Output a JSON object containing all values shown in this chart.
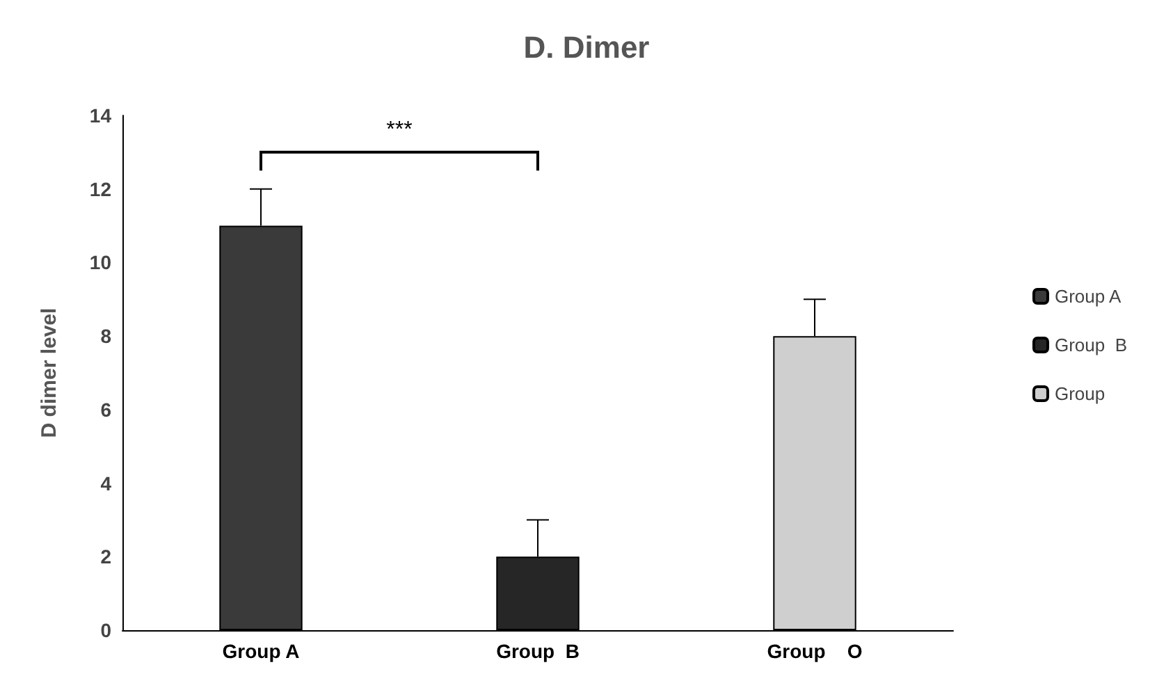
{
  "chart_data": {
    "type": "bar",
    "title": "D. Dimer",
    "ylabel": "D dimer level",
    "categories": [
      "Group A",
      "Group  B",
      "Group    O"
    ],
    "series": [
      {
        "name": "Group A",
        "color": "#3a3a3a",
        "values": [
          11,
          null,
          null
        ],
        "errors": [
          [
            11,
            12
          ],
          null,
          null
        ]
      },
      {
        "name": "Group  B",
        "color": "#262626",
        "values": [
          null,
          2,
          null
        ],
        "errors": [
          null,
          [
            2,
            3
          ],
          null
        ]
      },
      {
        "name": "Group",
        "color": "#cfcfcf",
        "values": [
          null,
          null,
          8
        ],
        "errors": [
          null,
          null,
          [
            8,
            9
          ]
        ]
      }
    ],
    "ylim": [
      0,
      14
    ],
    "yticks": [
      0,
      2,
      4,
      6,
      8,
      10,
      12,
      14
    ],
    "grid": false,
    "legend": "right",
    "annotations": [
      "***"
    ]
  }
}
